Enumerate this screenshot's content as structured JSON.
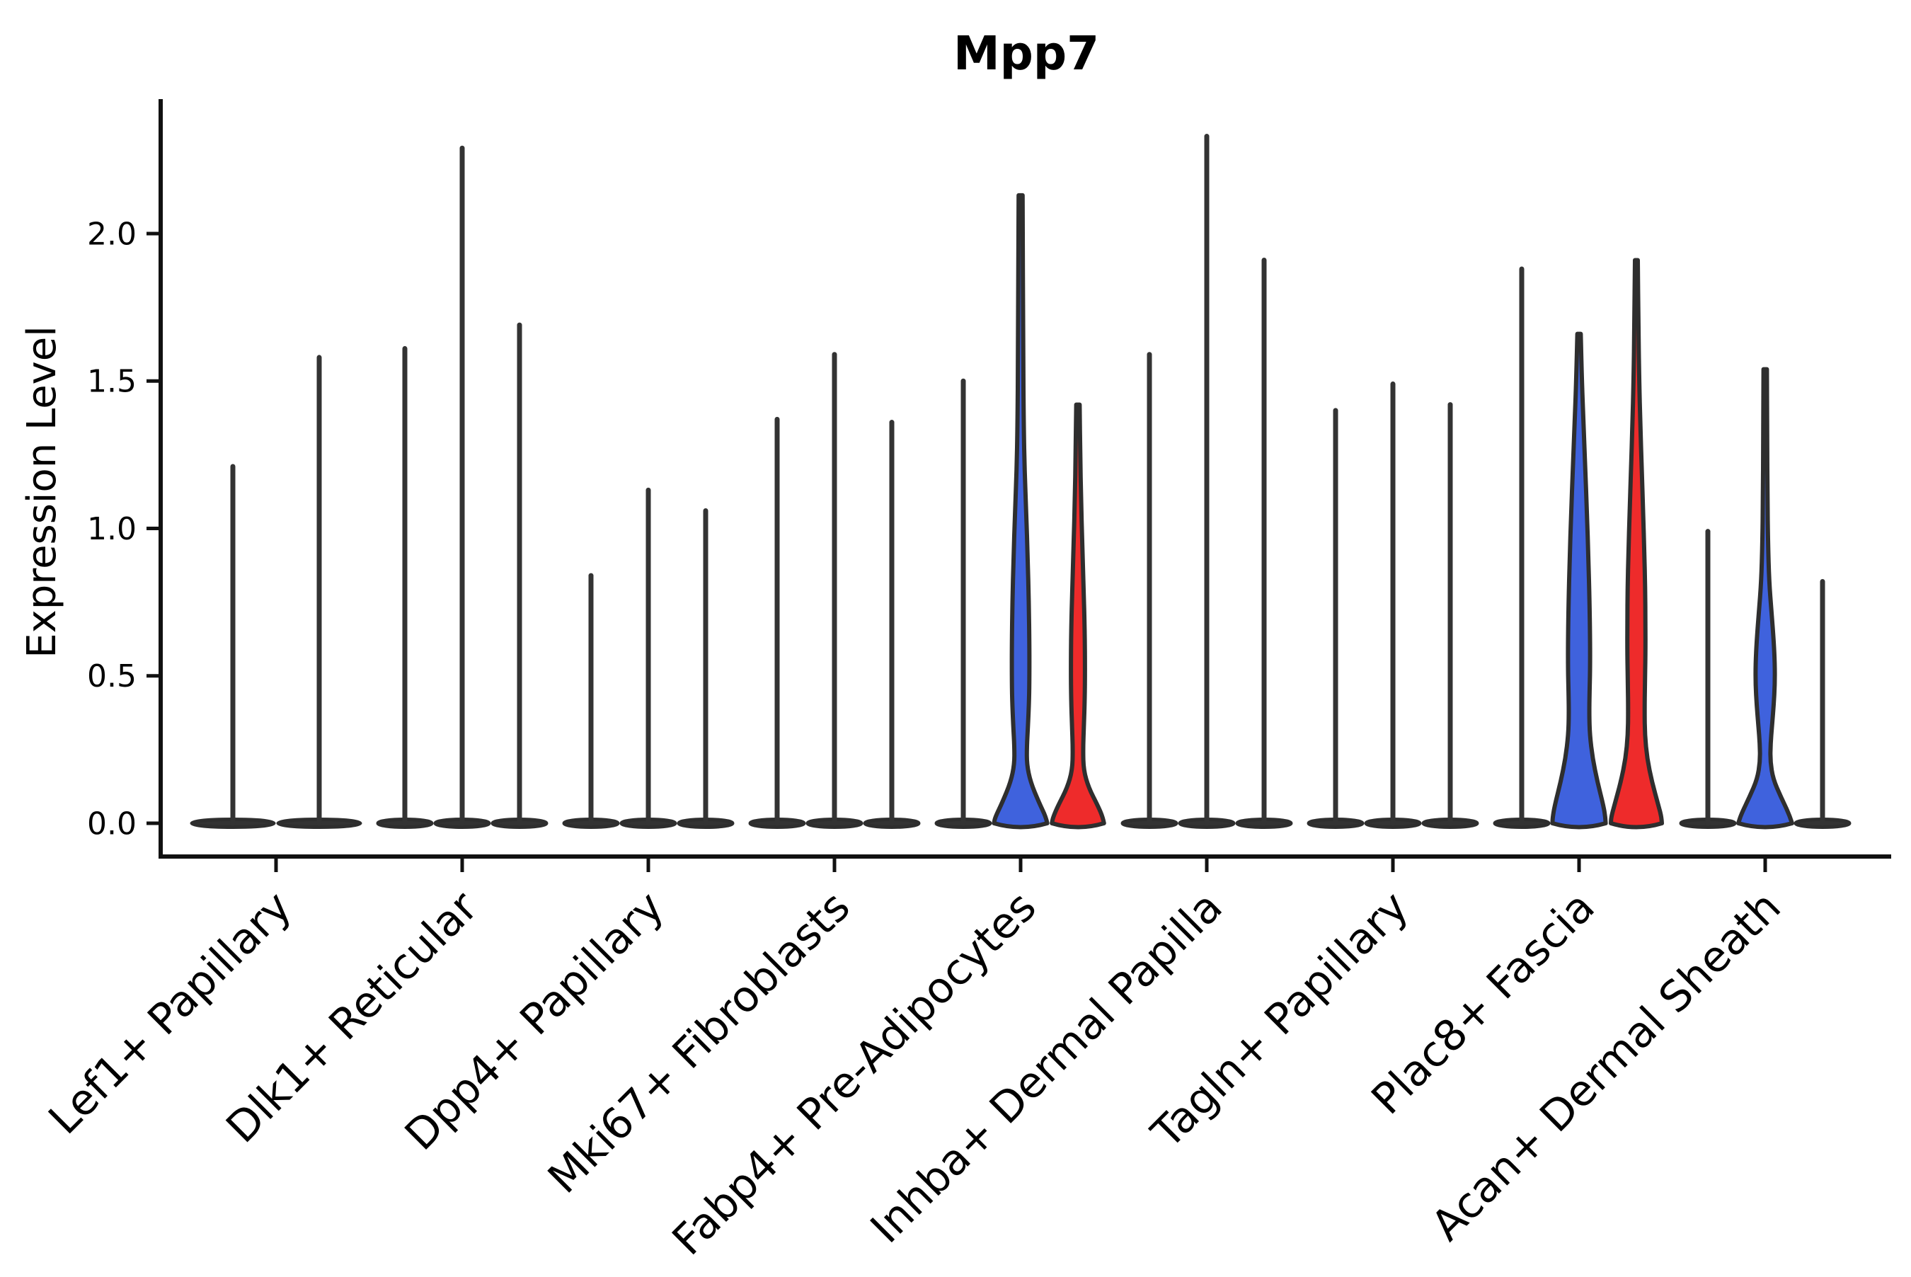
{
  "title": "Mpp7",
  "axes": {
    "ylabel": "Expression Level",
    "yticks": [
      "0.0",
      "0.5",
      "1.0",
      "1.5",
      "2.0"
    ]
  },
  "colors": {
    "blue": "#3F62DD",
    "red": "#EE2B2B",
    "outline": "#2E2E2E",
    "spike": "#333333",
    "axis": "#111111",
    "text": "#000000"
  },
  "chart_data": {
    "type": "violin",
    "title": "Mpp7",
    "xlabel": "",
    "ylabel": "Expression Level",
    "ylim": [
      -0.11,
      2.46
    ],
    "yticks": [
      0.0,
      0.5,
      1.0,
      1.5,
      2.0
    ],
    "grid": false,
    "legend": false,
    "categories": [
      "Lef1+ Papillary",
      "Dlk1+ Reticular",
      "Dpp4+ Papillary",
      "Mki67+ Fibroblasts",
      "Fabp4+ Pre-Adipocytes",
      "Inhba+ Dermal Papilla",
      "Tagln+ Papillary",
      "Plac8+ Fascia",
      "Acan+ Dermal Sheath"
    ],
    "groups": [
      {
        "category": "Lef1+ Papillary",
        "violins": [
          {
            "max": 1.21,
            "style": "thin",
            "color": "dark"
          },
          {
            "max": 1.58,
            "style": "thin",
            "color": "dark"
          }
        ]
      },
      {
        "category": "Dlk1+ Reticular",
        "violins": [
          {
            "max": 1.61,
            "style": "thin",
            "color": "dark"
          },
          {
            "max": 2.29,
            "style": "thin",
            "color": "dark"
          },
          {
            "max": 1.69,
            "style": "thin",
            "color": "dark"
          }
        ]
      },
      {
        "category": "Dpp4+ Papillary",
        "violins": [
          {
            "max": 0.84,
            "style": "thin",
            "color": "dark"
          },
          {
            "max": 1.13,
            "style": "thin",
            "color": "dark"
          },
          {
            "max": 1.06,
            "style": "thin",
            "color": "dark"
          }
        ]
      },
      {
        "category": "Mki67+ Fibroblasts",
        "violins": [
          {
            "max": 1.37,
            "style": "thin",
            "color": "dark"
          },
          {
            "max": 1.59,
            "style": "thin",
            "color": "dark"
          },
          {
            "max": 1.36,
            "style": "thin",
            "color": "dark"
          }
        ]
      },
      {
        "category": "Fabp4+ Pre-Adipocytes",
        "violins": [
          {
            "max": 1.5,
            "style": "thin",
            "color": "dark"
          },
          {
            "max": 2.13,
            "style": "filled",
            "color": "blue",
            "profile": [
              [
                2.13,
                0.07
              ],
              [
                1.6,
                0.09
              ],
              [
                1.35,
                0.11
              ],
              [
                1.2,
                0.14
              ],
              [
                1.05,
                0.2
              ],
              [
                0.9,
                0.25
              ],
              [
                0.75,
                0.29
              ],
              [
                0.6,
                0.31
              ],
              [
                0.5,
                0.31
              ],
              [
                0.42,
                0.3
              ],
              [
                0.33,
                0.26
              ],
              [
                0.26,
                0.22
              ],
              [
                0.2,
                0.22
              ],
              [
                0.14,
                0.35
              ],
              [
                0.07,
                0.65
              ],
              [
                0.02,
                0.9
              ],
              [
                0.0,
                0.94
              ]
            ]
          },
          {
            "max": 1.42,
            "style": "filled",
            "color": "red",
            "profile": [
              [
                1.42,
                0.06
              ],
              [
                1.25,
                0.08
              ],
              [
                1.1,
                0.11
              ],
              [
                0.95,
                0.15
              ],
              [
                0.8,
                0.2
              ],
              [
                0.65,
                0.24
              ],
              [
                0.52,
                0.25
              ],
              [
                0.42,
                0.24
              ],
              [
                0.33,
                0.21
              ],
              [
                0.25,
                0.18
              ],
              [
                0.18,
                0.2
              ],
              [
                0.12,
                0.38
              ],
              [
                0.06,
                0.7
              ],
              [
                0.02,
                0.88
              ],
              [
                0.0,
                0.92
              ]
            ]
          }
        ]
      },
      {
        "category": "Inhba+ Dermal Papilla",
        "violins": [
          {
            "max": 1.59,
            "style": "thin",
            "color": "dark"
          },
          {
            "max": 2.33,
            "style": "thin",
            "color": "dark"
          },
          {
            "max": 1.91,
            "style": "thin",
            "color": "dark"
          }
        ]
      },
      {
        "category": "Tagln+ Papillary",
        "violins": [
          {
            "max": 1.4,
            "style": "thin",
            "color": "dark"
          },
          {
            "max": 1.49,
            "style": "thin",
            "color": "dark"
          },
          {
            "max": 1.42,
            "style": "thin",
            "color": "dark"
          }
        ]
      },
      {
        "category": "Plac8+ Fascia",
        "violins": [
          {
            "max": 1.88,
            "style": "thin",
            "color": "dark"
          },
          {
            "max": 1.66,
            "style": "filled",
            "color": "blue",
            "profile": [
              [
                1.66,
                0.06
              ],
              [
                1.5,
                0.1
              ],
              [
                1.35,
                0.16
              ],
              [
                1.2,
                0.22
              ],
              [
                1.05,
                0.28
              ],
              [
                0.9,
                0.33
              ],
              [
                0.75,
                0.37
              ],
              [
                0.62,
                0.39
              ],
              [
                0.52,
                0.39
              ],
              [
                0.44,
                0.37
              ],
              [
                0.37,
                0.36
              ],
              [
                0.3,
                0.38
              ],
              [
                0.22,
                0.48
              ],
              [
                0.14,
                0.65
              ],
              [
                0.06,
                0.86
              ],
              [
                0.02,
                0.93
              ],
              [
                0.0,
                0.94
              ]
            ]
          },
          {
            "max": 1.91,
            "style": "filled",
            "color": "red",
            "profile": [
              [
                1.91,
                0.05
              ],
              [
                1.7,
                0.07
              ],
              [
                1.5,
                0.1
              ],
              [
                1.35,
                0.14
              ],
              [
                1.2,
                0.19
              ],
              [
                1.05,
                0.24
              ],
              [
                0.92,
                0.28
              ],
              [
                0.8,
                0.31
              ],
              [
                0.68,
                0.32
              ],
              [
                0.57,
                0.32
              ],
              [
                0.47,
                0.3
              ],
              [
                0.38,
                0.29
              ],
              [
                0.3,
                0.3
              ],
              [
                0.22,
                0.38
              ],
              [
                0.14,
                0.55
              ],
              [
                0.06,
                0.78
              ],
              [
                0.02,
                0.89
              ],
              [
                0.0,
                0.9
              ]
            ]
          }
        ]
      },
      {
        "category": "Acan+ Dermal Sheath",
        "violins": [
          {
            "max": 0.99,
            "style": "thin",
            "color": "dark"
          },
          {
            "max": 1.54,
            "style": "filled",
            "color": "blue",
            "profile": [
              [
                1.54,
                0.06
              ],
              [
                1.3,
                0.07
              ],
              [
                1.1,
                0.08
              ],
              [
                0.95,
                0.1
              ],
              [
                0.82,
                0.14
              ],
              [
                0.72,
                0.22
              ],
              [
                0.62,
                0.3
              ],
              [
                0.54,
                0.34
              ],
              [
                0.47,
                0.34
              ],
              [
                0.4,
                0.3
              ],
              [
                0.33,
                0.24
              ],
              [
                0.27,
                0.19
              ],
              [
                0.21,
                0.18
              ],
              [
                0.15,
                0.28
              ],
              [
                0.09,
                0.55
              ],
              [
                0.03,
                0.85
              ],
              [
                0.0,
                0.95
              ]
            ]
          },
          {
            "max": 0.82,
            "style": "thin",
            "color": "dark"
          }
        ]
      }
    ]
  }
}
